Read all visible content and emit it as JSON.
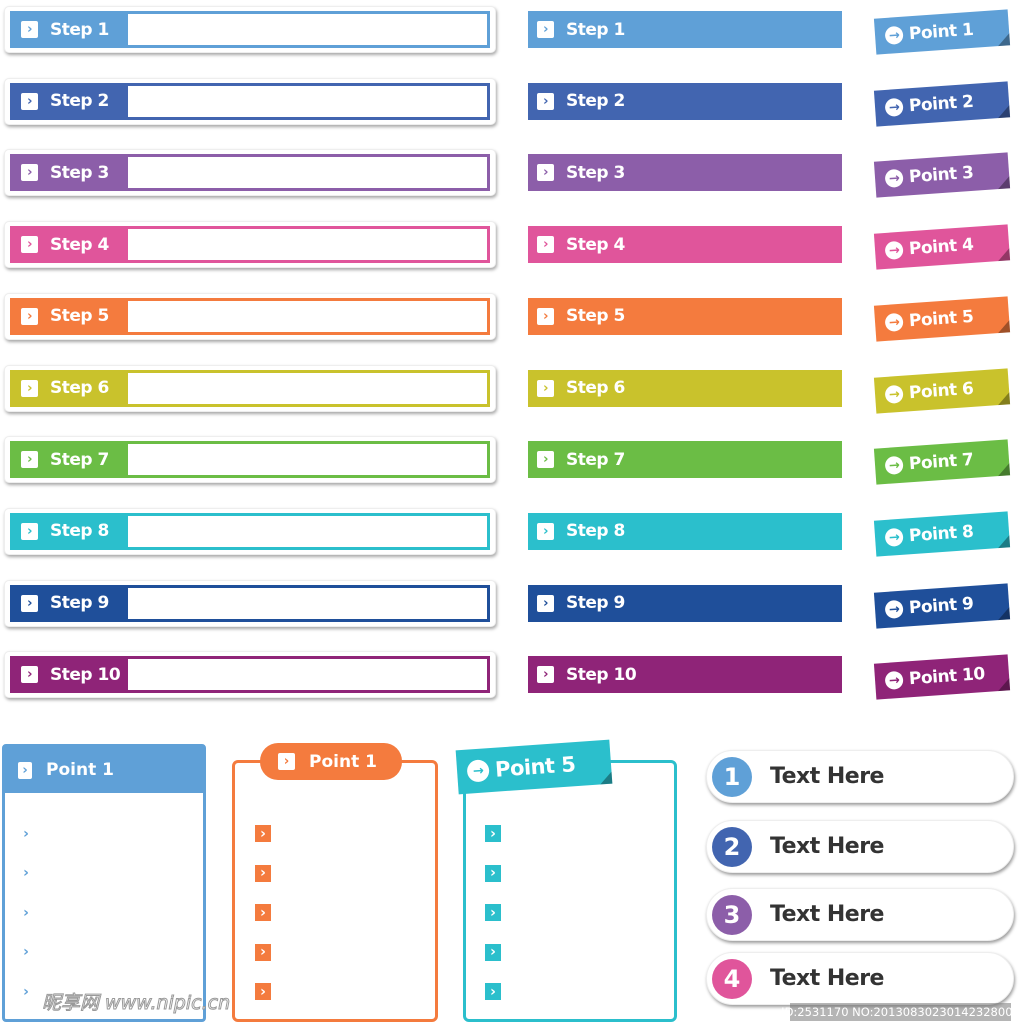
{
  "colors": [
    "#5fa0d7",
    "#4265b0",
    "#8c5ea9",
    "#e0559b",
    "#f47b3e",
    "#c9c22c",
    "#6bbd45",
    "#2bbfcc",
    "#1f4f9a",
    "#8f2478"
  ],
  "framed_steps": [
    "Step 1",
    "Step 2",
    "Step 3",
    "Step 4",
    "Step 5",
    "Step 6",
    "Step 7",
    "Step 8",
    "Step 9",
    "Step 10"
  ],
  "bar_steps": [
    "Step 1",
    "Step 2",
    "Step 3",
    "Step 4",
    "Step 5",
    "Step 6",
    "Step 7",
    "Step 8",
    "Step 9",
    "Step 10"
  ],
  "point_tags": [
    "Point 1",
    "Point 2",
    "Point 3",
    "Point 4",
    "Point 5",
    "Point 6",
    "Point 7",
    "Point 8",
    "Point 9",
    "Point 10"
  ],
  "panels": [
    {
      "title": "Point 1",
      "color": "#5fa0d7",
      "items": 5
    },
    {
      "title": "Point 1",
      "color": "#f47b3e",
      "items": 5
    },
    {
      "title": "Point 5",
      "color": "#2bbfcc",
      "items": 5
    }
  ],
  "numbered": [
    {
      "num": "1",
      "text": "Text Here",
      "color": "#5fa0d7"
    },
    {
      "num": "2",
      "text": "Text Here",
      "color": "#4265b0"
    },
    {
      "num": "3",
      "text": "Text Here",
      "color": "#8c5ea9"
    },
    {
      "num": "4",
      "text": "Text Here",
      "color": "#e0559b"
    }
  ],
  "icons": {
    "step": "chevron-right-icon",
    "tag": "arrow-right-circle-icon"
  },
  "watermark": {
    "site": "昵享网 www.nipic.cn",
    "id": "ID:2531170 NO:20130830230142328000"
  }
}
